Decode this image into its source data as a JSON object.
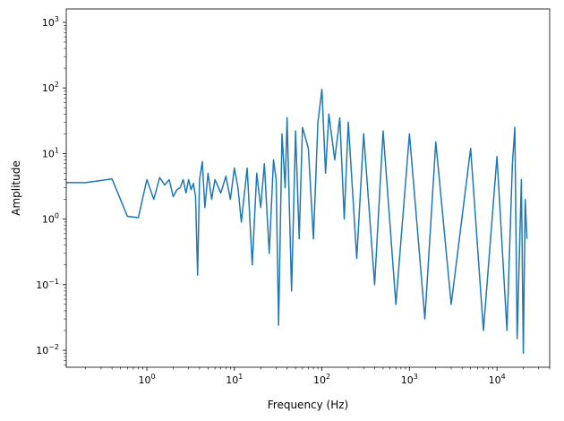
{
  "chart_data": {
    "type": "line",
    "title": "",
    "xlabel": "Frequency (Hz)",
    "ylabel": "Amplitude",
    "xscale": "log",
    "yscale": "log",
    "xlim": [
      0.12,
      40000
    ],
    "ylim": [
      0.0055,
      1600
    ],
    "grid": false,
    "legend": "none",
    "color": "#1f77b4",
    "x_ticks": [
      {
        "value": 1,
        "base": "10",
        "exp": "0"
      },
      {
        "value": 10,
        "base": "10",
        "exp": "1"
      },
      {
        "value": 100,
        "base": "10",
        "exp": "2"
      },
      {
        "value": 1000,
        "base": "10",
        "exp": "3"
      },
      {
        "value": 10000,
        "base": "10",
        "exp": "4"
      }
    ],
    "y_ticks": [
      {
        "value": 0.01,
        "base": "10",
        "exp": "−2"
      },
      {
        "value": 0.1,
        "base": "10",
        "exp": "−1"
      },
      {
        "value": 1,
        "base": "10",
        "exp": "0"
      },
      {
        "value": 10,
        "base": "10",
        "exp": "1"
      },
      {
        "value": 100,
        "base": "10",
        "exp": "2"
      },
      {
        "value": 1000,
        "base": "10",
        "exp": "3"
      }
    ],
    "series": [
      {
        "x": [
          0.1,
          0.2,
          0.4,
          0.6,
          0.8,
          1.0,
          1.2,
          1.4,
          1.6,
          1.8,
          2.0,
          2.2,
          2.4,
          2.6,
          2.8,
          3.0,
          3.2,
          3.4,
          3.6,
          3.8,
          4.0,
          4.3,
          4.6,
          5.0,
          5.5,
          6.0,
          7.0,
          8.0,
          9.0,
          10,
          11,
          12,
          14,
          16,
          18,
          20,
          22,
          25,
          28,
          30,
          32,
          35,
          38,
          40,
          45,
          50,
          55,
          60,
          70,
          80,
          90,
          100,
          110,
          120,
          140,
          160,
          180,
          200,
          250,
          300,
          400,
          500,
          700,
          1000,
          1500,
          2000,
          3000,
          5000,
          7000,
          10000,
          13000,
          15000,
          16000,
          17000,
          19000,
          20000,
          21000,
          22000
        ],
        "y": [
          3.6,
          3.6,
          4.1,
          1.1,
          1.05,
          4.0,
          2.0,
          4.3,
          3.3,
          4.0,
          2.2,
          2.8,
          3.0,
          4.0,
          2.5,
          4.0,
          2.8,
          3.5,
          2.2,
          0.14,
          4.0,
          7.5,
          1.5,
          5.0,
          2.0,
          4.0,
          2.5,
          4.5,
          2.0,
          6.0,
          3.0,
          0.9,
          6.0,
          0.2,
          5.0,
          1.5,
          7.0,
          0.3,
          8.0,
          4.0,
          0.024,
          20.0,
          3.0,
          35.0,
          0.08,
          22.0,
          0.5,
          25.0,
          12.0,
          0.5,
          30.0,
          95.0,
          5.0,
          40.0,
          8.0,
          35.0,
          1.0,
          30.0,
          0.25,
          20.0,
          0.1,
          22.0,
          0.05,
          20.0,
          0.03,
          15.0,
          0.05,
          12.0,
          0.02,
          9.0,
          0.02,
          7.0,
          25.0,
          0.015,
          4.0,
          0.009,
          2.0,
          0.5
        ]
      }
    ]
  }
}
